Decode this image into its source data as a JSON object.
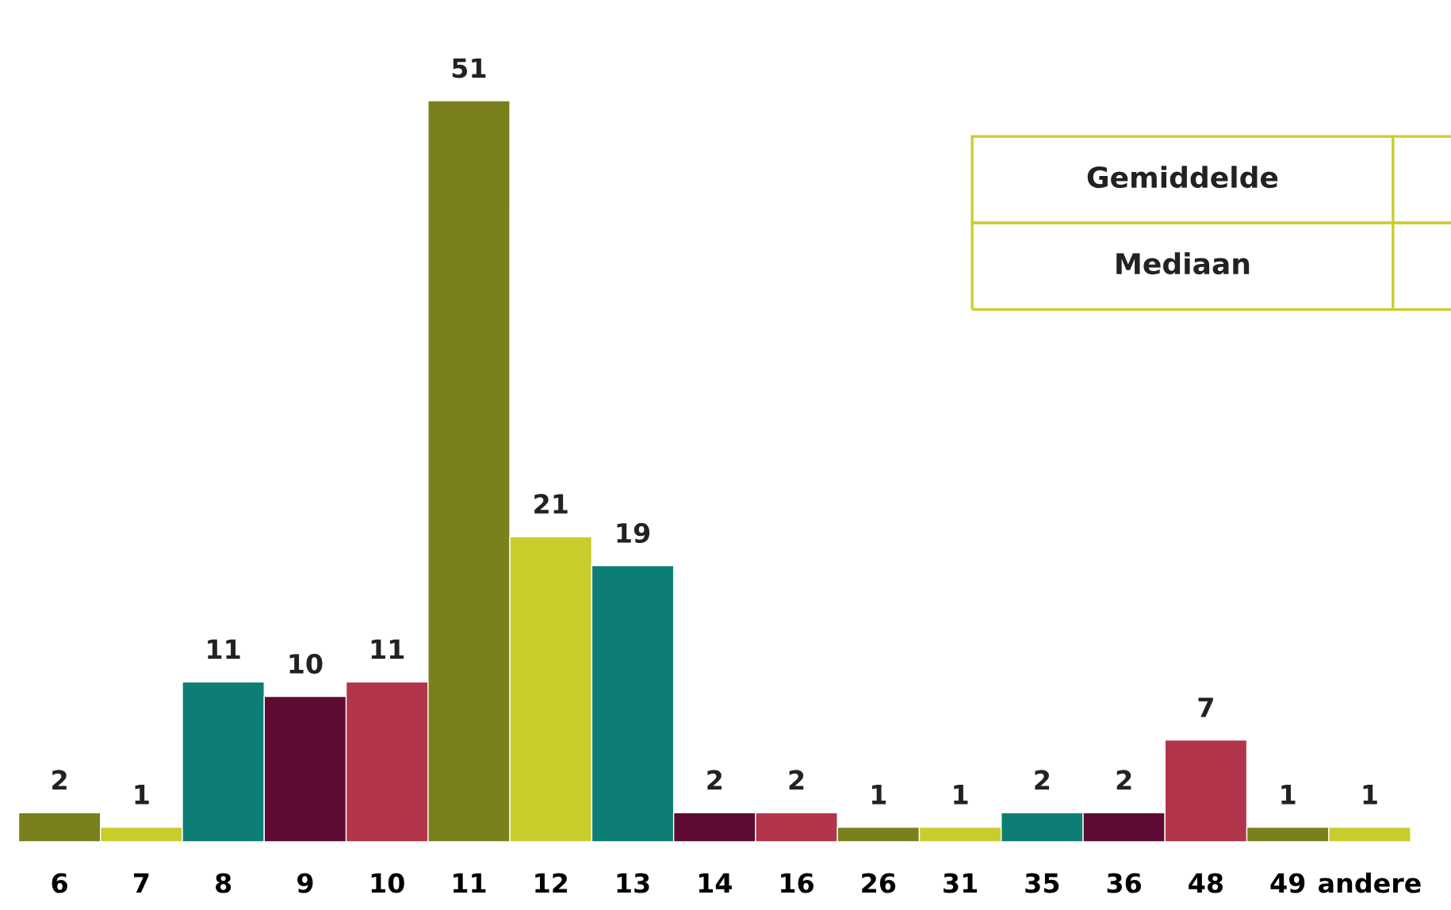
{
  "chart_data": {
    "type": "bar",
    "categories": [
      "6",
      "7",
      "8",
      "9",
      "10",
      "11",
      "12",
      "13",
      "14",
      "16",
      "26",
      "31",
      "35",
      "36",
      "48",
      "49",
      "andere"
    ],
    "values": [
      2,
      1,
      11,
      10,
      11,
      51,
      21,
      19,
      2,
      2,
      1,
      1,
      2,
      2,
      7,
      1,
      1
    ],
    "colors": [
      "#7b801f",
      "#c9cd2c",
      "#0d7e76",
      "#5e0b33",
      "#b2354b",
      "#7b801f",
      "#c9cd2c",
      "#0d7e76",
      "#5e0b33",
      "#b2354b",
      "#7b801f",
      "#c9cd2c",
      "#0d7e76",
      "#5e0b33",
      "#b2354b",
      "#7b801f",
      "#c9cd2c"
    ],
    "data_labels": true,
    "annotations": [
      "Gemiddelde",
      "Mediaan"
    ]
  }
}
